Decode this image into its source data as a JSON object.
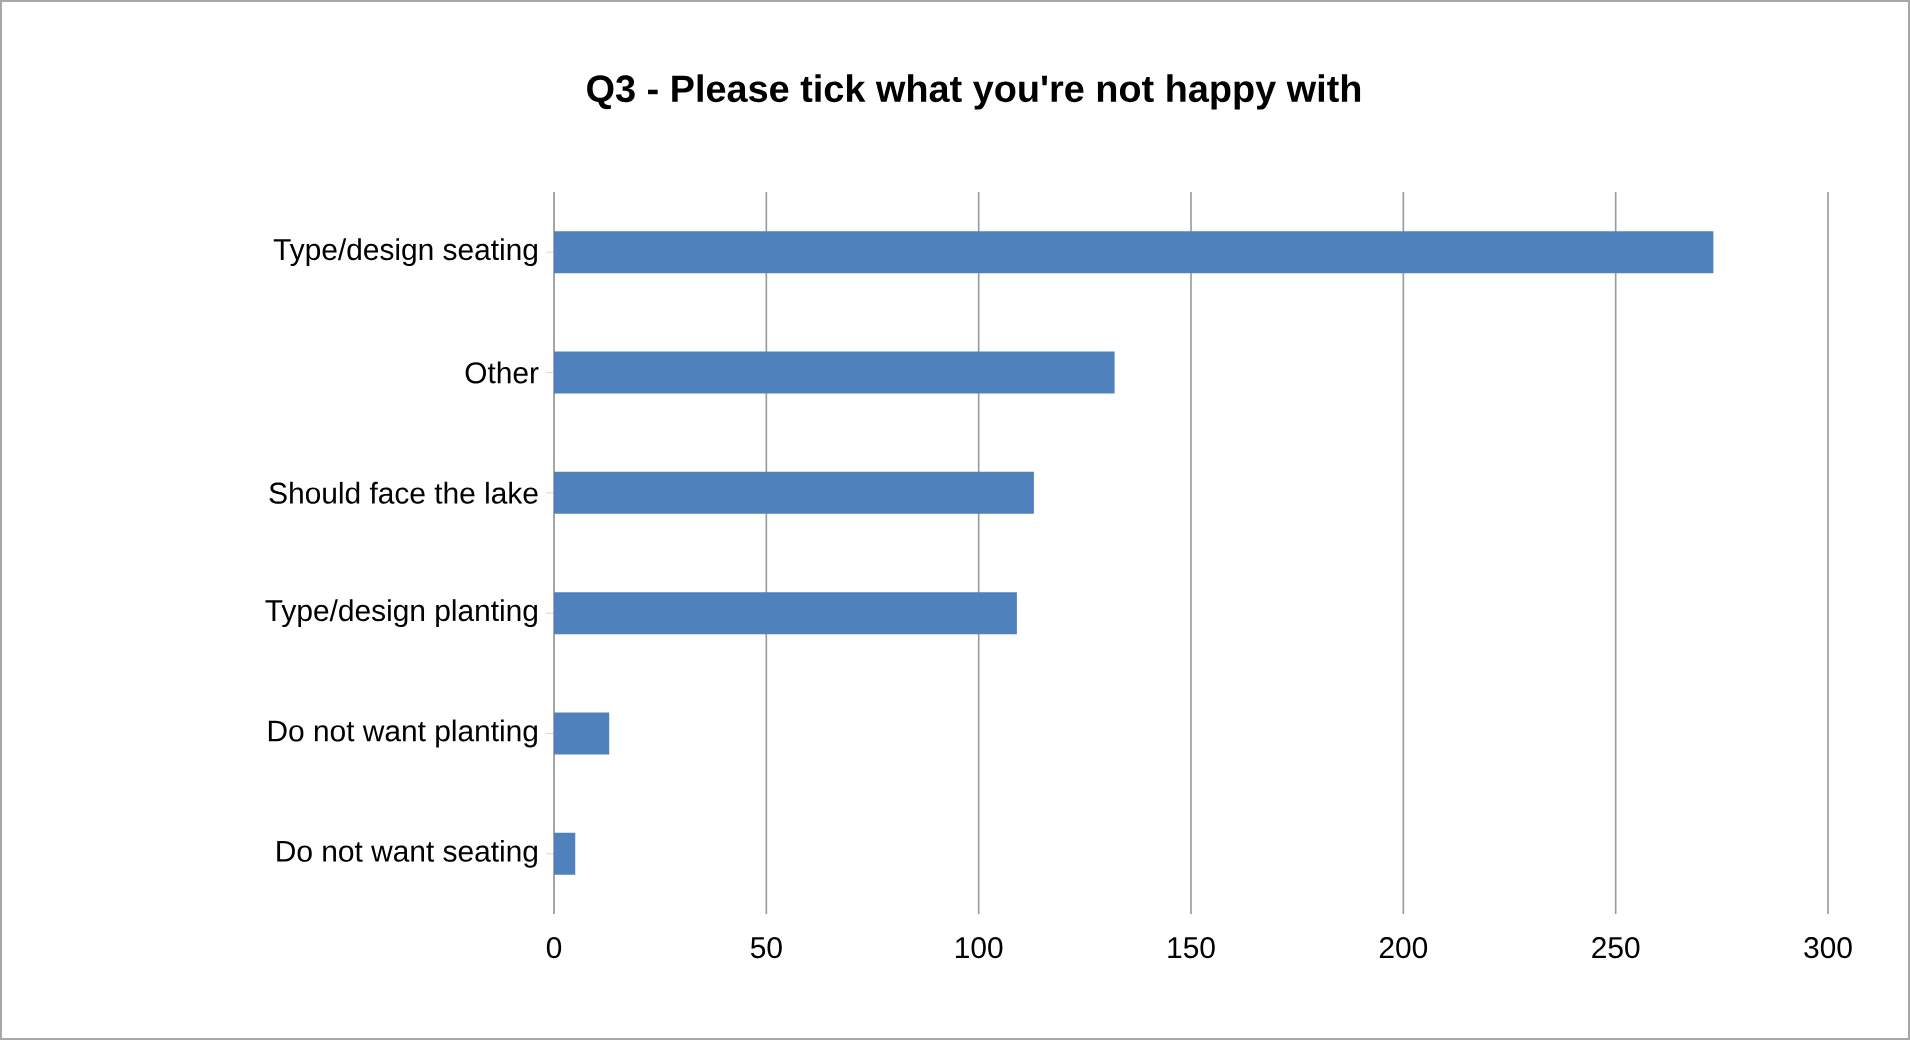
{
  "chart_data": {
    "type": "bar",
    "orientation": "horizontal",
    "title": "Q3 - Please tick what you're not happy with",
    "categories": [
      "Type/design seating",
      "Other",
      "Should face the lake",
      "Type/design planting",
      "Do not want planting",
      "Do not want seating"
    ],
    "values": [
      273,
      132,
      113,
      109,
      13,
      5
    ],
    "color": "#4f81bd",
    "xlim": [
      0,
      300
    ],
    "xticks": [
      0,
      50,
      100,
      150,
      200,
      250,
      300
    ],
    "grid": "x"
  }
}
